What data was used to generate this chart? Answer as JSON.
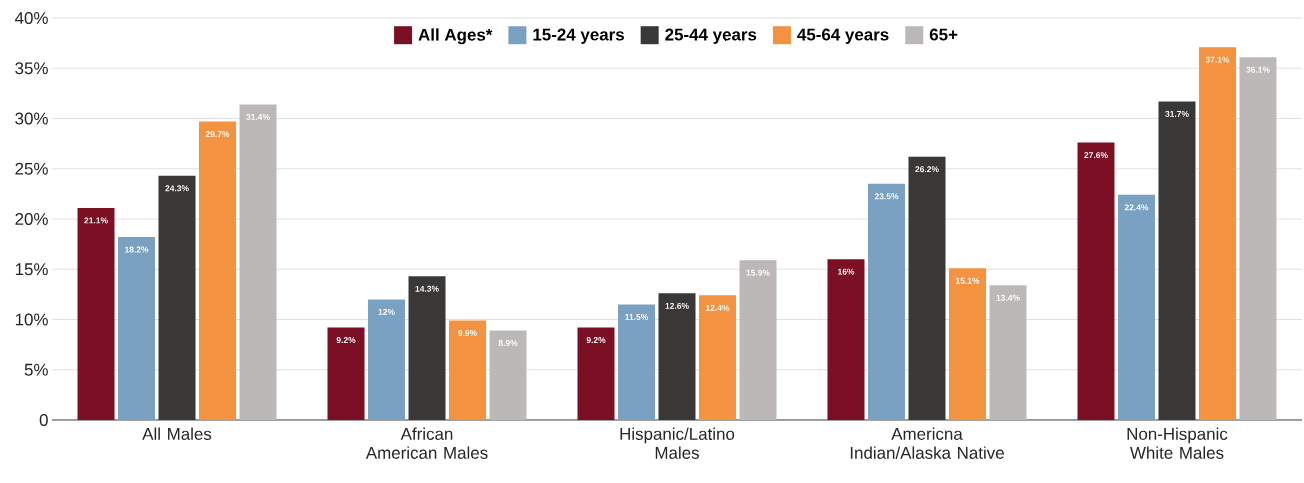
{
  "chart_data": {
    "type": "bar",
    "categories": [
      "All Males",
      "African American Males",
      "Hispanic/Latino Males",
      "Americna Indian/Alaska Native",
      "Non-Hispanic White Males"
    ],
    "series": [
      {
        "name": "All Ages*",
        "color": "#7b0f24",
        "values": [
          21.1,
          9.2,
          9.2,
          16,
          27.6
        ],
        "value_labels": [
          "21.1%",
          "9.2%",
          "9.2%",
          "16%",
          "27.6%"
        ]
      },
      {
        "name": "15-24 years",
        "color": "#7ba1c2",
        "values": [
          18.2,
          12,
          11.5,
          23.5,
          22.4
        ],
        "value_labels": [
          "18.2%",
          "12%",
          "11.5%",
          "23.5%",
          "22.4%"
        ]
      },
      {
        "name": "25-44 years",
        "color": "#3a3737",
        "values": [
          24.3,
          14.3,
          12.6,
          26.2,
          31.7
        ],
        "value_labels": [
          "24.3%",
          "14.3%",
          "12.6%",
          "26.2%",
          "31.7%"
        ]
      },
      {
        "name": "45-64 years",
        "color": "#f39240",
        "values": [
          29.7,
          9.9,
          12.4,
          15.1,
          37.1
        ],
        "value_labels": [
          "29.7%",
          "9.9%",
          "12.4%",
          "15.1%",
          "37.1%"
        ]
      },
      {
        "name": "65+",
        "color": "#bcb8b8",
        "values": [
          31.4,
          8.9,
          15.9,
          13.4,
          36.1
        ],
        "value_labels": [
          "31.4%",
          "8.9%",
          "15.9%",
          "13.4%",
          "36.1%"
        ]
      }
    ],
    "ylim": [
      0,
      40
    ],
    "yticks": [
      0,
      {
        "value": 5,
        "label": "5%"
      },
      {
        "value": 10,
        "label": "10%"
      },
      {
        "value": 15,
        "label": "15%"
      },
      {
        "value": 20,
        "label": "20%"
      },
      {
        "value": 25,
        "label": "25%"
      },
      {
        "value": 30,
        "label": "30%"
      },
      {
        "value": 35,
        "label": "35%"
      },
      {
        "value": 40,
        "label": "40%"
      }
    ],
    "grid": "y",
    "legend": "top"
  }
}
